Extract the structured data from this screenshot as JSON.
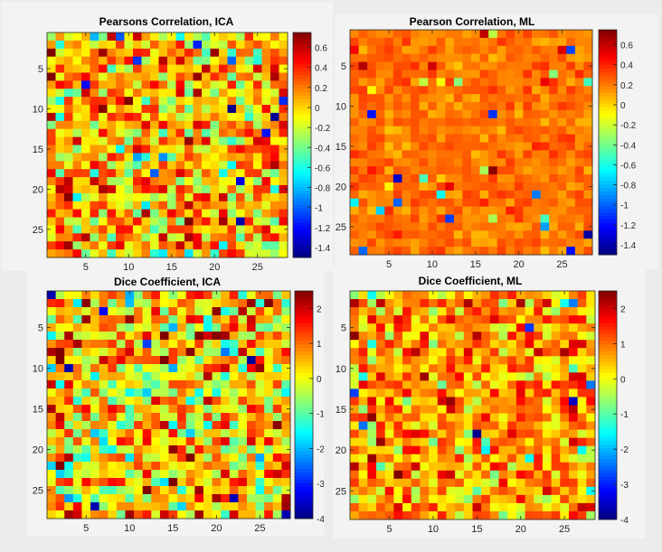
{
  "chart_data": [
    {
      "type": "heatmap",
      "title": "Pearsons Correlation, ICA",
      "rows": 28,
      "cols": 28,
      "xticks": [
        5,
        10,
        15,
        20,
        25
      ],
      "yticks": [
        5,
        10,
        15,
        20,
        25
      ],
      "colormap": "jet",
      "clim": [
        -1.5,
        0.75
      ],
      "colorbar_ticks": [
        "0.6",
        "0.4",
        "0.2",
        "0",
        "-0.2",
        "-0.4",
        "-0.6",
        "-0.8",
        "-1",
        "-1.2",
        "-1.4"
      ],
      "colorbar_values": [
        0.6,
        0.4,
        0.2,
        0,
        -0.2,
        -0.4,
        -0.6,
        -0.8,
        -1,
        -1.2,
        -1.4
      ],
      "value_distribution": {
        "mean": 0.05,
        "spread": 0.85
      },
      "seed": 11
    },
    {
      "type": "heatmap",
      "title": "Pearson Correlation, ML",
      "rows": 28,
      "cols": 28,
      "xticks": [
        5,
        10,
        15,
        20,
        25
      ],
      "yticks": [
        5,
        10,
        15,
        20,
        25
      ],
      "colormap": "jet",
      "clim": [
        -1.5,
        0.75
      ],
      "colorbar_ticks": [
        "0.6",
        "0.4",
        "0.2",
        "0",
        "-0.2",
        "-0.4",
        "-0.6",
        "-0.8",
        "-1",
        "-1.2",
        "-1.4"
      ],
      "colorbar_values": [
        0.6,
        0.4,
        0.2,
        0,
        -0.2,
        -0.4,
        -0.6,
        -0.8,
        -1,
        -1.2,
        -1.4
      ],
      "value_distribution": {
        "mean": 0.22,
        "spread": 0.22
      },
      "seed": 23
    },
    {
      "type": "heatmap",
      "title": "Dice Coefficient, ICA",
      "rows": 28,
      "cols": 28,
      "xticks": [
        5,
        10,
        15,
        20,
        25
      ],
      "yticks": [
        5,
        10,
        15,
        20,
        25
      ],
      "colormap": "jet",
      "clim": [
        -4,
        2.5
      ],
      "colorbar_ticks": [
        "2",
        "1",
        "0",
        "-1",
        "-2",
        "-3",
        "-4"
      ],
      "colorbar_values": [
        2,
        1,
        0,
        -1,
        -2,
        -3,
        -4
      ],
      "value_distribution": {
        "mean": 0.35,
        "spread": 1.0
      },
      "seed": 37
    },
    {
      "type": "heatmap",
      "title": "Dice Coefficient, ML",
      "rows": 28,
      "cols": 28,
      "xticks": [
        5,
        10,
        15,
        20,
        25
      ],
      "yticks": [
        5,
        10,
        15,
        20,
        25
      ],
      "colormap": "jet",
      "clim": [
        -4,
        2.5
      ],
      "colorbar_ticks": [
        "2",
        "1",
        "0",
        "-1",
        "-2",
        "-3",
        "-4"
      ],
      "colorbar_values": [
        2,
        1,
        0,
        -1,
        -2,
        -3,
        -4
      ],
      "value_distribution": {
        "mean": 0.75,
        "spread": 0.7
      },
      "seed": 53
    }
  ]
}
